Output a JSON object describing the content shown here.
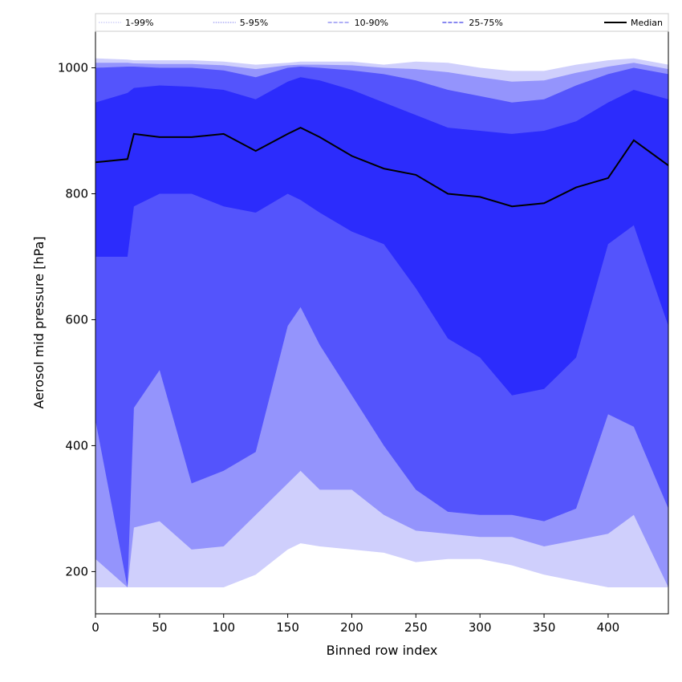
{
  "chart_data": {
    "type": "area",
    "xlabel": "Binned row index",
    "ylabel": "Aerosol mid pressure [hPa]",
    "xlim": [
      0,
      447
    ],
    "ylim": [
      133,
      1058
    ],
    "x_ticks": [
      0,
      50,
      100,
      150,
      200,
      250,
      300,
      350,
      400
    ],
    "y_ticks": [
      200,
      400,
      600,
      800,
      1000
    ],
    "legend": {
      "placement": "top",
      "entries": [
        {
          "label": "1-99%",
          "style": "dotted",
          "color": "#c8c8f6"
        },
        {
          "label": "5-95%",
          "style": "dotted",
          "color": "#9a9af2"
        },
        {
          "label": "10-90%",
          "style": "dashed",
          "color": "#8080f0"
        },
        {
          "label": "25-75%",
          "style": "dashed",
          "color": "#4040e8"
        },
        {
          "label": "Median",
          "style": "solid",
          "color": "#000000"
        }
      ]
    },
    "x": [
      0,
      25,
      30,
      50,
      75,
      100,
      125,
      150,
      160,
      175,
      200,
      225,
      250,
      275,
      300,
      325,
      350,
      375,
      400,
      420,
      447
    ],
    "bands": [
      {
        "label": "1-99%",
        "color": "#cfcffc",
        "lower": [
          175,
          175,
          175,
          175,
          175,
          175,
          195,
          235,
          245,
          240,
          235,
          230,
          215,
          220,
          220,
          210,
          195,
          185,
          175,
          175,
          175
        ],
        "upper": [
          1015,
          1013,
          1012,
          1012,
          1012,
          1010,
          1005,
          1008,
          1010,
          1010,
          1010,
          1005,
          1010,
          1008,
          1000,
          995,
          995,
          1005,
          1012,
          1015,
          1005
        ]
      },
      {
        "label": "5-95%",
        "color": "#9494fc",
        "lower": [
          220,
          175,
          270,
          280,
          235,
          240,
          290,
          340,
          360,
          330,
          330,
          290,
          265,
          260,
          255,
          255,
          240,
          250,
          260,
          290,
          175
        ],
        "upper": [
          1008,
          1008,
          1007,
          1006,
          1006,
          1004,
          998,
          1004,
          1005,
          1005,
          1004,
          1000,
          998,
          993,
          985,
          978,
          980,
          992,
          1002,
          1008,
          998
        ]
      },
      {
        "label": "10-90%",
        "color": "#5454fc",
        "lower": [
          440,
          175,
          460,
          520,
          340,
          360,
          390,
          590,
          620,
          560,
          480,
          400,
          330,
          295,
          290,
          290,
          280,
          300,
          450,
          430,
          300
        ],
        "upper": [
          1000,
          1002,
          1002,
          1000,
          1000,
          996,
          985,
          1000,
          1002,
          1000,
          996,
          990,
          980,
          965,
          955,
          945,
          950,
          972,
          990,
          1000,
          990
        ]
      },
      {
        "label": "25-75%",
        "color": "#2c2cfc",
        "lower": [
          700,
          700,
          780,
          800,
          800,
          780,
          770,
          800,
          790,
          770,
          740,
          720,
          650,
          570,
          540,
          480,
          490,
          540,
          720,
          750,
          590
        ],
        "upper": [
          945,
          960,
          968,
          972,
          970,
          965,
          950,
          978,
          985,
          980,
          965,
          945,
          925,
          905,
          900,
          895,
          900,
          915,
          945,
          965,
          950
        ]
      }
    ],
    "median": {
      "label": "Median",
      "color": "#000000",
      "values": [
        850,
        855,
        895,
        890,
        890,
        895,
        868,
        895,
        905,
        890,
        860,
        840,
        830,
        800,
        795,
        780,
        785,
        810,
        825,
        885,
        845
      ]
    }
  }
}
